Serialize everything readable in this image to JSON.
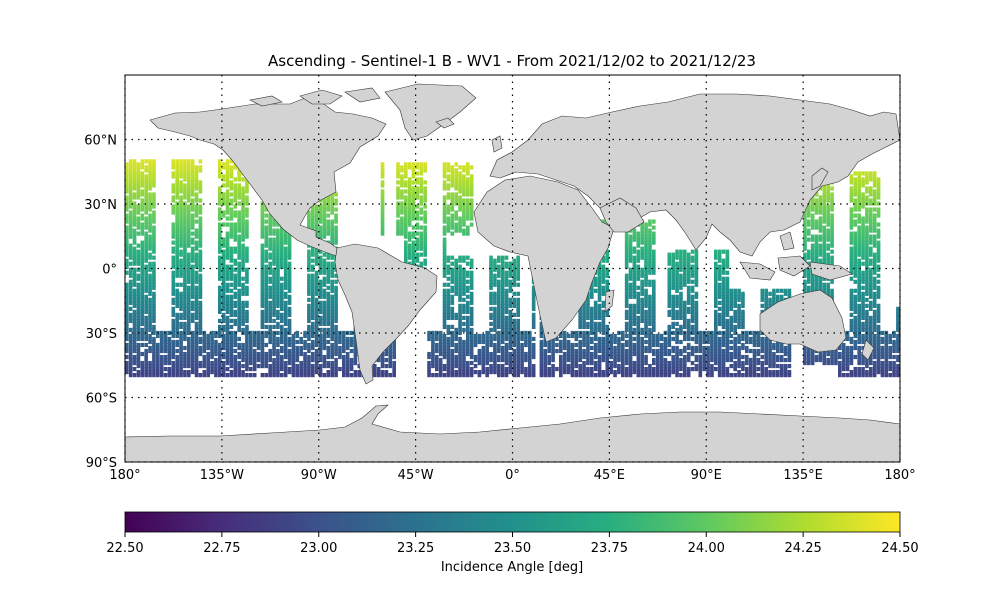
{
  "figure": {
    "title": "Ascending - Sentinel-1 B - WV1 - From 2021/12/02 to 2021/12/23",
    "colorbar_label": "Incidence Angle [deg]"
  },
  "map": {
    "projection": "PlateCarree",
    "lon_range": [
      -180,
      180
    ],
    "lat_range": [
      -90,
      90
    ],
    "land_color": "#d3d3d3",
    "coastline_color": "#333333",
    "gridlines": "dotted",
    "lon_ticks": [
      {
        "value": -180,
        "label": "180°"
      },
      {
        "value": -135,
        "label": "135°W"
      },
      {
        "value": -90,
        "label": "90°W"
      },
      {
        "value": -45,
        "label": "45°W"
      },
      {
        "value": 0,
        "label": "0°"
      },
      {
        "value": 45,
        "label": "45°E"
      },
      {
        "value": 90,
        "label": "90°E"
      },
      {
        "value": 135,
        "label": "135°E"
      },
      {
        "value": 180,
        "label": "180°"
      }
    ],
    "lat_ticks": [
      {
        "value": 60,
        "label": "60°N"
      },
      {
        "value": 30,
        "label": "30°N"
      },
      {
        "value": 0,
        "label": "0°"
      },
      {
        "value": -30,
        "label": "30°S"
      },
      {
        "value": -60,
        "label": "60°S"
      },
      {
        "value": -90,
        "label": "90°S"
      }
    ]
  },
  "colorbar": {
    "colormap": "viridis",
    "range": [
      22.5,
      24.5
    ],
    "ticks": [
      {
        "value": 22.5,
        "label": "22.50"
      },
      {
        "value": 22.75,
        "label": "22.75"
      },
      {
        "value": 23.0,
        "label": "23.00"
      },
      {
        "value": 23.25,
        "label": "23.25"
      },
      {
        "value": 23.5,
        "label": "23.50"
      },
      {
        "value": 23.75,
        "label": "23.75"
      },
      {
        "value": 24.0,
        "label": "24.00"
      },
      {
        "value": 24.25,
        "label": "24.25"
      },
      {
        "value": 24.5,
        "label": "24.50"
      }
    ]
  },
  "data_coverage": {
    "variable": "Incidence Angle",
    "value_range": [
      22.9,
      24.4
    ],
    "lat_extent": [
      -50,
      50
    ]
  }
}
